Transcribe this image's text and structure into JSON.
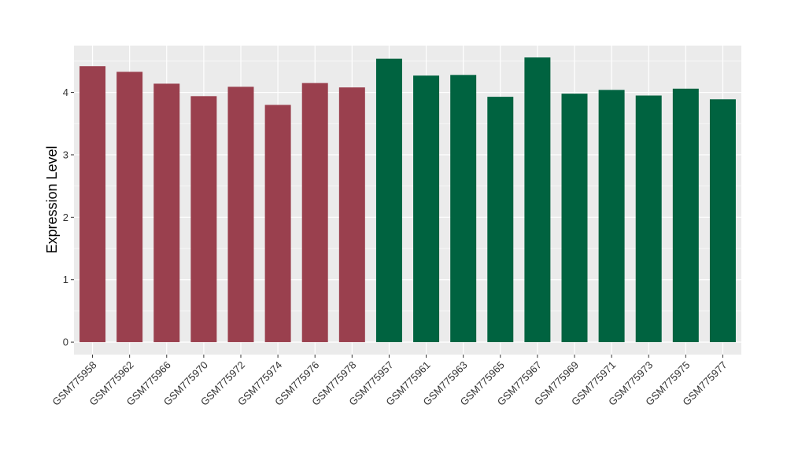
{
  "chart_data": {
    "type": "bar",
    "title": "",
    "xlabel": "",
    "ylabel": "Expression Level",
    "ylim": [
      -0.2,
      4.75
    ],
    "yticks": [
      0,
      1,
      2,
      3,
      4
    ],
    "grid": true,
    "categories": [
      "GSM775958",
      "GSM775962",
      "GSM775966",
      "GSM775970",
      "GSM775972",
      "GSM775974",
      "GSM775976",
      "GSM775978",
      "GSM775957",
      "GSM775961",
      "GSM775963",
      "GSM775965",
      "GSM775967",
      "GSM775969",
      "GSM775971",
      "GSM775973",
      "GSM775975",
      "GSM775977"
    ],
    "values": [
      4.42,
      4.33,
      4.14,
      3.94,
      4.09,
      3.8,
      4.15,
      4.08,
      4.54,
      4.27,
      4.28,
      3.93,
      4.56,
      3.98,
      4.04,
      3.95,
      4.06,
      3.89
    ],
    "group_sizes": [
      8,
      10
    ],
    "colors": [
      "#9a404e",
      "#006340"
    ],
    "background_color": "#ebebeb",
    "grid_color": "#ffffff"
  }
}
